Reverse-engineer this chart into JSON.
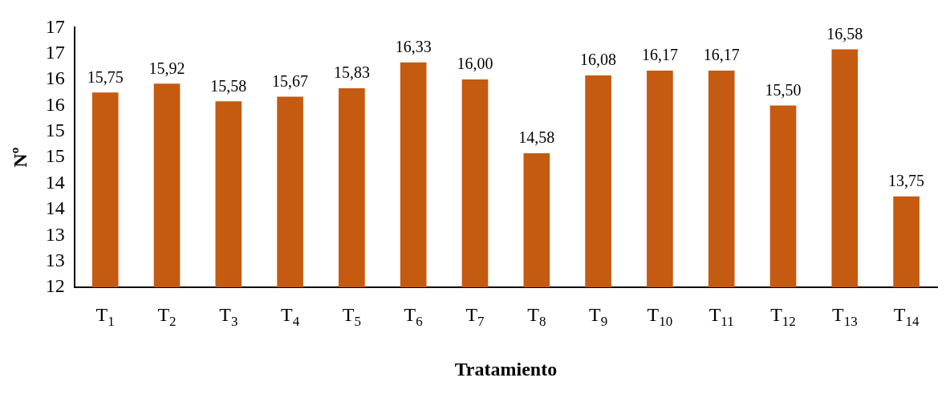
{
  "chart_data": {
    "type": "bar",
    "xlabel": "Tratamiento",
    "ylabel": "Nº",
    "categories": [
      "T$_{1}$",
      "T$_{2}$",
      "T$_{3}$",
      "T$_{4}$",
      "T$_{5}$",
      "T$_{6}$",
      "T$_{7}$",
      "T$_{8}$",
      "T$_{9}$",
      "T$_{10}$",
      "T$_{11}$",
      "T$_{12}$",
      "T$_{13}$",
      "T$_{14}$"
    ],
    "values": [
      15.75,
      15.92,
      15.58,
      15.67,
      15.83,
      16.33,
      16.0,
      14.58,
      16.08,
      16.17,
      16.17,
      15.5,
      16.58,
      13.75
    ],
    "value_labels": [
      "15,75",
      "15,92",
      "15,58",
      "15,67",
      "15,83",
      "16,33",
      "16,00",
      "14,58",
      "16,08",
      "16,17",
      "16,17",
      "15,50",
      "16,58",
      "13,75"
    ],
    "color": "#c55a11",
    "ylim": [
      12,
      17
    ],
    "yticks": [
      12,
      {
        "value": 12.5,
        "label": "13"
      },
      13,
      {
        "value": 13.5,
        "label": "14"
      },
      14,
      {
        "value": 14.5,
        "label": "15"
      },
      15,
      {
        "value": 15.5,
        "label": "16"
      },
      16,
      {
        "value": 16.5,
        "label": "17"
      },
      17
    ],
    "grid": false,
    "legend": false
  }
}
